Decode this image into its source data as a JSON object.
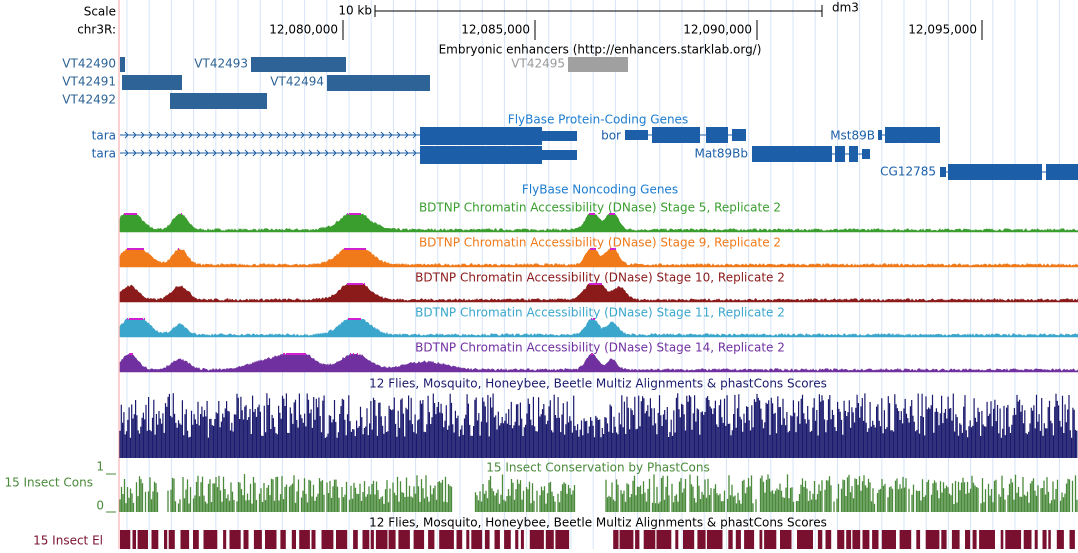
{
  "header": {
    "scale_label": "Scale",
    "chrom": "chr3R:",
    "scale_bar": "10 kb",
    "assembly": "dm3"
  },
  "ruler": {
    "ticks": [
      "12,080,000",
      "12,085,000",
      "12,090,000",
      "12,095,000"
    ]
  },
  "enhancers": {
    "title": "Embryonic enhancers (http://enhancers.starklab.org/)",
    "features": [
      "VT42490",
      "VT42491",
      "VT42492",
      "VT42493",
      "VT42494",
      "VT42495"
    ]
  },
  "protein_genes": {
    "title": "FlyBase Protein-Coding Genes",
    "genes": [
      "tara",
      "tara",
      "bor",
      "Mst89B",
      "Mat89Bb",
      "CG12785"
    ]
  },
  "noncoding_genes": {
    "title": "FlyBase Noncoding Genes"
  },
  "dnase_tracks": [
    {
      "title": "BDTNP Chromatin Accessibility (DNase) Stage 5, Replicate 2",
      "color": "#3a9e2e"
    },
    {
      "title": "BDTNP Chromatin Accessibility (DNase) Stage 9, Replicate 2",
      "color": "#f07a1a"
    },
    {
      "title": "BDTNP Chromatin Accessibility (DNase) Stage 10, Replicate 2",
      "color": "#8b1a1a"
    },
    {
      "title": "BDTNP Chromatin Accessibility (DNase) Stage 11, Replicate 2",
      "color": "#3aa6cc"
    },
    {
      "title": "BDTNP Chromatin Accessibility (DNase) Stage 14, Replicate 2",
      "color": "#7030a0"
    }
  ],
  "multiz": {
    "title": "12 Flies, Mosquito, Honeybee, Beetle Multiz Alignments & phastCons Scores"
  },
  "phastcons": {
    "title": "15 Insect Conservation by PhastCons",
    "label": "15 Insect Cons",
    "axis": [
      1,
      0
    ]
  },
  "elements": {
    "title": "12 Flies, Mosquito, Honeybee, Beetle Multiz Alignments & phastCons Scores",
    "label": "15 Insect El"
  }
}
